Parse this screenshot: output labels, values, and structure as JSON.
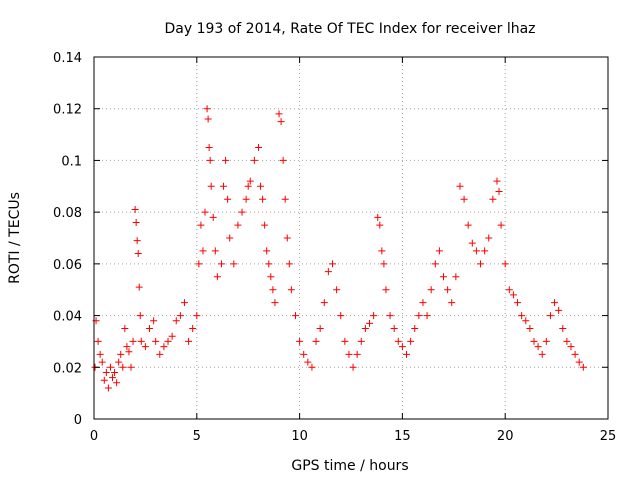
{
  "chart_data": {
    "type": "scatter",
    "title": "Day 193 of 2014, Rate Of TEC Index for receiver lhaz",
    "xlabel": "GPS time / hours",
    "ylabel": "ROTI / TECUs",
    "xlim": [
      0,
      25
    ],
    "ylim": [
      0,
      0.14
    ],
    "xticks": [
      "0",
      "5",
      "10",
      "15",
      "20",
      "25"
    ],
    "yticks": [
      "0",
      "0.02",
      "0.04",
      "0.06",
      "0.08",
      "0.1",
      "0.12",
      "0.14"
    ],
    "grid": true,
    "legend": "none",
    "marker": "plus",
    "color": "#ff0000",
    "series": [
      {
        "x": [
          0.05,
          0.1,
          0.2,
          0.3,
          0.4,
          0.5,
          0.6,
          0.7,
          0.8,
          0.9,
          1.0,
          1.1,
          1.2,
          1.3,
          1.4,
          1.5,
          1.6,
          1.7,
          1.8,
          1.9,
          2.0,
          2.05,
          2.1,
          2.15,
          2.2,
          2.25,
          2.3,
          2.5,
          2.7,
          2.9,
          3.0,
          3.2,
          3.4,
          3.6,
          3.8,
          4.0,
          4.2,
          4.4,
          4.6,
          4.8,
          5.0,
          5.1,
          5.2,
          5.3,
          5.4,
          5.5,
          5.55,
          5.6,
          5.65,
          5.7,
          5.8,
          5.9,
          6.0,
          6.2,
          6.3,
          6.4,
          6.5,
          6.6,
          6.8,
          7.0,
          7.2,
          7.4,
          7.5,
          7.6,
          7.8,
          8.0,
          8.1,
          8.2,
          8.3,
          8.4,
          8.5,
          8.6,
          8.7,
          8.8,
          9.0,
          9.1,
          9.2,
          9.3,
          9.4,
          9.5,
          9.6,
          9.8,
          10.0,
          10.2,
          10.4,
          10.6,
          10.8,
          11.0,
          11.2,
          11.4,
          11.6,
          11.8,
          12.0,
          12.2,
          12.4,
          12.6,
          12.8,
          13.0,
          13.2,
          13.4,
          13.6,
          13.8,
          13.9,
          14.0,
          14.1,
          14.2,
          14.4,
          14.6,
          14.8,
          15.0,
          15.2,
          15.4,
          15.6,
          15.8,
          16.0,
          16.2,
          16.4,
          16.6,
          16.8,
          17.0,
          17.2,
          17.4,
          17.6,
          17.8,
          18.0,
          18.2,
          18.4,
          18.6,
          18.8,
          19.0,
          19.2,
          19.4,
          19.6,
          19.7,
          19.8,
          20.0,
          20.2,
          20.4,
          20.6,
          20.8,
          21.0,
          21.2,
          21.4,
          21.6,
          21.8,
          22.0,
          22.2,
          22.4,
          22.6,
          22.8,
          23.0,
          23.2,
          23.4,
          23.6,
          23.8
        ],
        "y": [
          0.02,
          0.038,
          0.03,
          0.025,
          0.022,
          0.015,
          0.018,
          0.012,
          0.02,
          0.016,
          0.018,
          0.014,
          0.022,
          0.025,
          0.02,
          0.035,
          0.028,
          0.026,
          0.02,
          0.03,
          0.081,
          0.076,
          0.069,
          0.064,
          0.051,
          0.04,
          0.03,
          0.028,
          0.035,
          0.038,
          0.03,
          0.025,
          0.028,
          0.03,
          0.032,
          0.038,
          0.04,
          0.045,
          0.03,
          0.035,
          0.04,
          0.06,
          0.075,
          0.065,
          0.08,
          0.12,
          0.116,
          0.105,
          0.1,
          0.09,
          0.078,
          0.065,
          0.055,
          0.06,
          0.09,
          0.1,
          0.085,
          0.07,
          0.06,
          0.075,
          0.08,
          0.085,
          0.09,
          0.092,
          0.1,
          0.105,
          0.09,
          0.085,
          0.075,
          0.065,
          0.06,
          0.055,
          0.05,
          0.045,
          0.118,
          0.115,
          0.1,
          0.085,
          0.07,
          0.06,
          0.05,
          0.04,
          0.03,
          0.025,
          0.022,
          0.02,
          0.03,
          0.035,
          0.045,
          0.057,
          0.06,
          0.05,
          0.04,
          0.03,
          0.025,
          0.02,
          0.025,
          0.03,
          0.035,
          0.037,
          0.04,
          0.078,
          0.075,
          0.065,
          0.06,
          0.05,
          0.04,
          0.035,
          0.03,
          0.028,
          0.025,
          0.03,
          0.035,
          0.04,
          0.045,
          0.04,
          0.05,
          0.06,
          0.065,
          0.055,
          0.05,
          0.045,
          0.055,
          0.09,
          0.085,
          0.075,
          0.068,
          0.065,
          0.06,
          0.065,
          0.07,
          0.085,
          0.092,
          0.088,
          0.075,
          0.06,
          0.05,
          0.048,
          0.045,
          0.04,
          0.038,
          0.035,
          0.03,
          0.028,
          0.025,
          0.03,
          0.04,
          0.045,
          0.042,
          0.035,
          0.03,
          0.028,
          0.025,
          0.022,
          0.02
        ]
      }
    ]
  }
}
